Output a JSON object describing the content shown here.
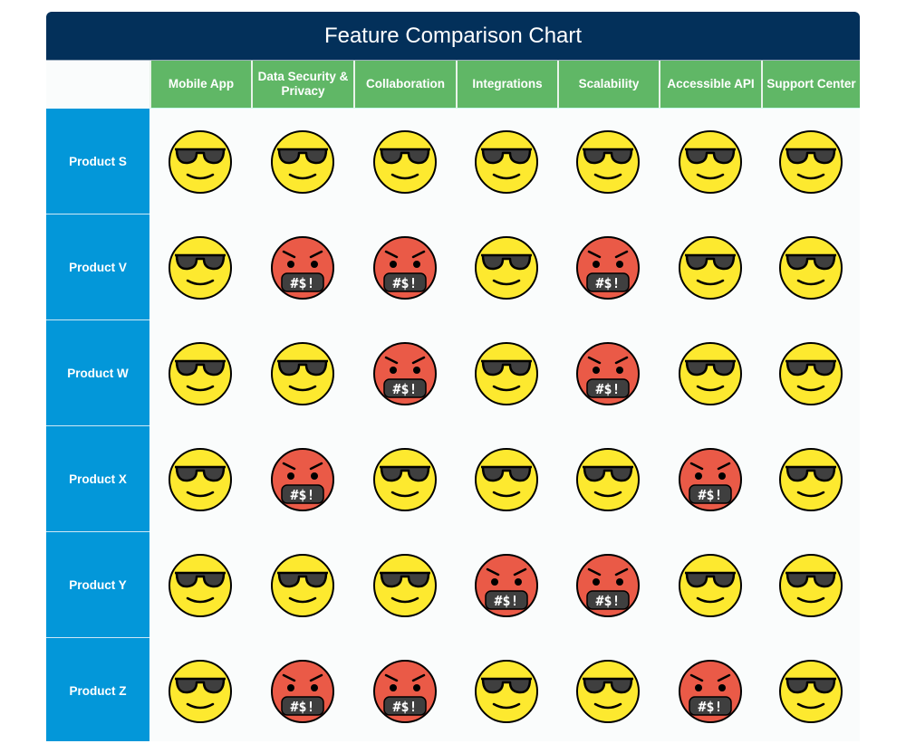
{
  "title": "Feature Comparison Chart",
  "features": [
    "Mobile App",
    "Data Security & Privacy",
    "Collaboration",
    "Integrations",
    "Scalability",
    "Accessible API",
    "Support Center"
  ],
  "products": [
    {
      "name": "Product S",
      "ratings": [
        "cool",
        "cool",
        "cool",
        "cool",
        "cool",
        "cool",
        "cool"
      ]
    },
    {
      "name": "Product V",
      "ratings": [
        "cool",
        "angry",
        "angry",
        "cool",
        "angry",
        "cool",
        "cool"
      ]
    },
    {
      "name": "Product W",
      "ratings": [
        "cool",
        "cool",
        "angry",
        "cool",
        "angry",
        "cool",
        "cool"
      ]
    },
    {
      "name": "Product X",
      "ratings": [
        "cool",
        "angry",
        "cool",
        "cool",
        "cool",
        "angry",
        "cool"
      ]
    },
    {
      "name": "Product Y",
      "ratings": [
        "cool",
        "cool",
        "cool",
        "angry",
        "angry",
        "cool",
        "cool"
      ]
    },
    {
      "name": "Product Z",
      "ratings": [
        "cool",
        "angry",
        "angry",
        "cool",
        "cool",
        "angry",
        "cool"
      ]
    }
  ],
  "icons": {
    "cool": "smiling-face-with-sunglasses-icon",
    "angry": "face-with-symbols-on-mouth-icon"
  },
  "angry_symbols": "#$!",
  "colors": {
    "header": "#03305a",
    "feature_header": "#60b766",
    "product_header": "#0397d9",
    "cool_face": "#fde92f",
    "angry_face": "#ea5a47"
  }
}
